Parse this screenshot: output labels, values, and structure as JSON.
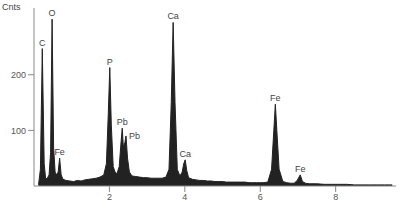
{
  "chart_data": {
    "type": "area",
    "y_label": "Cnts",
    "color": "#222222",
    "x": [
      0.12,
      0.17,
      0.22,
      0.27,
      0.31,
      0.36,
      0.4,
      0.44,
      0.48,
      0.52,
      0.56,
      0.6,
      0.64,
      0.68,
      0.72,
      0.77,
      0.85,
      0.95,
      1.05,
      1.15,
      1.25,
      1.35,
      1.45,
      1.55,
      1.65,
      1.75,
      1.85,
      1.92,
      1.97,
      2.01,
      2.05,
      2.1,
      2.15,
      2.2,
      2.26,
      2.31,
      2.34,
      2.37,
      2.41,
      2.44,
      2.48,
      2.53,
      2.6,
      2.7,
      2.8,
      2.9,
      3.0,
      3.1,
      3.2,
      3.3,
      3.4,
      3.5,
      3.58,
      3.64,
      3.69,
      3.74,
      3.8,
      3.87,
      3.93,
      3.97,
      4.01,
      4.05,
      4.1,
      4.2,
      4.3,
      4.4,
      4.5,
      4.6,
      4.7,
      4.8,
      4.9,
      5.0,
      5.1,
      5.2,
      5.3,
      5.4,
      5.5,
      5.6,
      5.7,
      5.8,
      5.9,
      6.0,
      6.1,
      6.2,
      6.3,
      6.36,
      6.4,
      6.44,
      6.5,
      6.6,
      6.7,
      6.8,
      6.9,
      6.98,
      7.06,
      7.12,
      7.2,
      7.3,
      7.5,
      7.7,
      7.9,
      8.1,
      8.3,
      8.5,
      8.7,
      8.9,
      9.1,
      9.3,
      9.5
    ],
    "values": [
      2,
      30,
      247,
      40,
      12,
      15,
      20,
      60,
      300,
      70,
      25,
      20,
      25,
      50,
      20,
      12,
      10,
      9,
      8,
      10,
      9,
      11,
      12,
      13,
      14,
      16,
      20,
      40,
      130,
      213,
      110,
      35,
      25,
      22,
      35,
      80,
      104,
      70,
      78,
      90,
      50,
      25,
      18,
      17,
      16,
      15,
      15,
      14,
      14,
      14,
      14,
      16,
      30,
      150,
      294,
      150,
      30,
      18,
      25,
      40,
      47,
      28,
      15,
      12,
      11,
      10,
      10,
      9,
      9,
      8,
      8,
      8,
      7,
      7,
      7,
      7,
      7,
      7,
      6,
      6,
      6,
      6,
      6,
      7,
      30,
      100,
      147,
      100,
      30,
      8,
      6,
      5,
      5,
      10,
      20,
      8,
      5,
      4,
      4,
      3,
      3,
      3,
      3,
      2,
      2,
      2,
      2,
      2,
      2
    ],
    "xlim": [
      0,
      9.6
    ],
    "xticks": [
      2,
      4,
      6,
      8
    ],
    "ylim": [
      0,
      320
    ],
    "yticks": [
      100,
      200
    ],
    "annotations": [
      {
        "text": "C",
        "x": 0.22,
        "y": 247
      },
      {
        "text": "O",
        "x": 0.48,
        "y": 300
      },
      {
        "text": "Fe",
        "x": 0.68,
        "y": 50
      },
      {
        "text": "P",
        "x": 2.01,
        "y": 213
      },
      {
        "text": "Pb",
        "x": 2.34,
        "y": 104
      },
      {
        "text": "Pb",
        "x": 2.44,
        "y": 90
      },
      {
        "text": "Ca",
        "x": 3.69,
        "y": 294
      },
      {
        "text": "Ca",
        "x": 4.01,
        "y": 47
      },
      {
        "text": "Fe",
        "x": 6.4,
        "y": 147
      },
      {
        "text": "Fe",
        "x": 7.06,
        "y": 20
      }
    ]
  }
}
